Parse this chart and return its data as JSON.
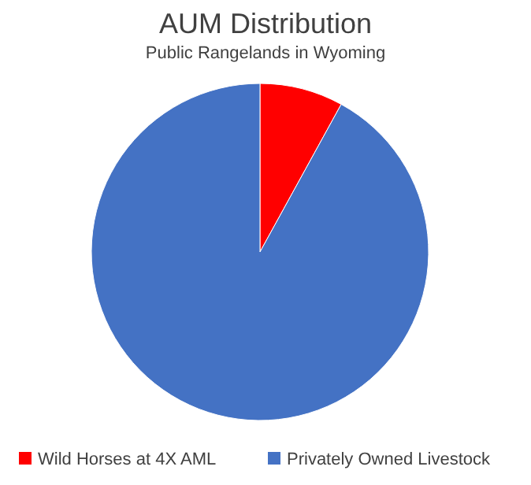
{
  "chart_data": {
    "type": "pie",
    "title": "AUM Distribution",
    "subtitle": "Public Rangelands in Wyoming",
    "categories": [
      "Wild Horses at 4X AML",
      "Privately Owned Livestock"
    ],
    "values": [
      8,
      92
    ],
    "colors": [
      "#ff0000",
      "#4472c4"
    ],
    "legend": "bottom"
  }
}
